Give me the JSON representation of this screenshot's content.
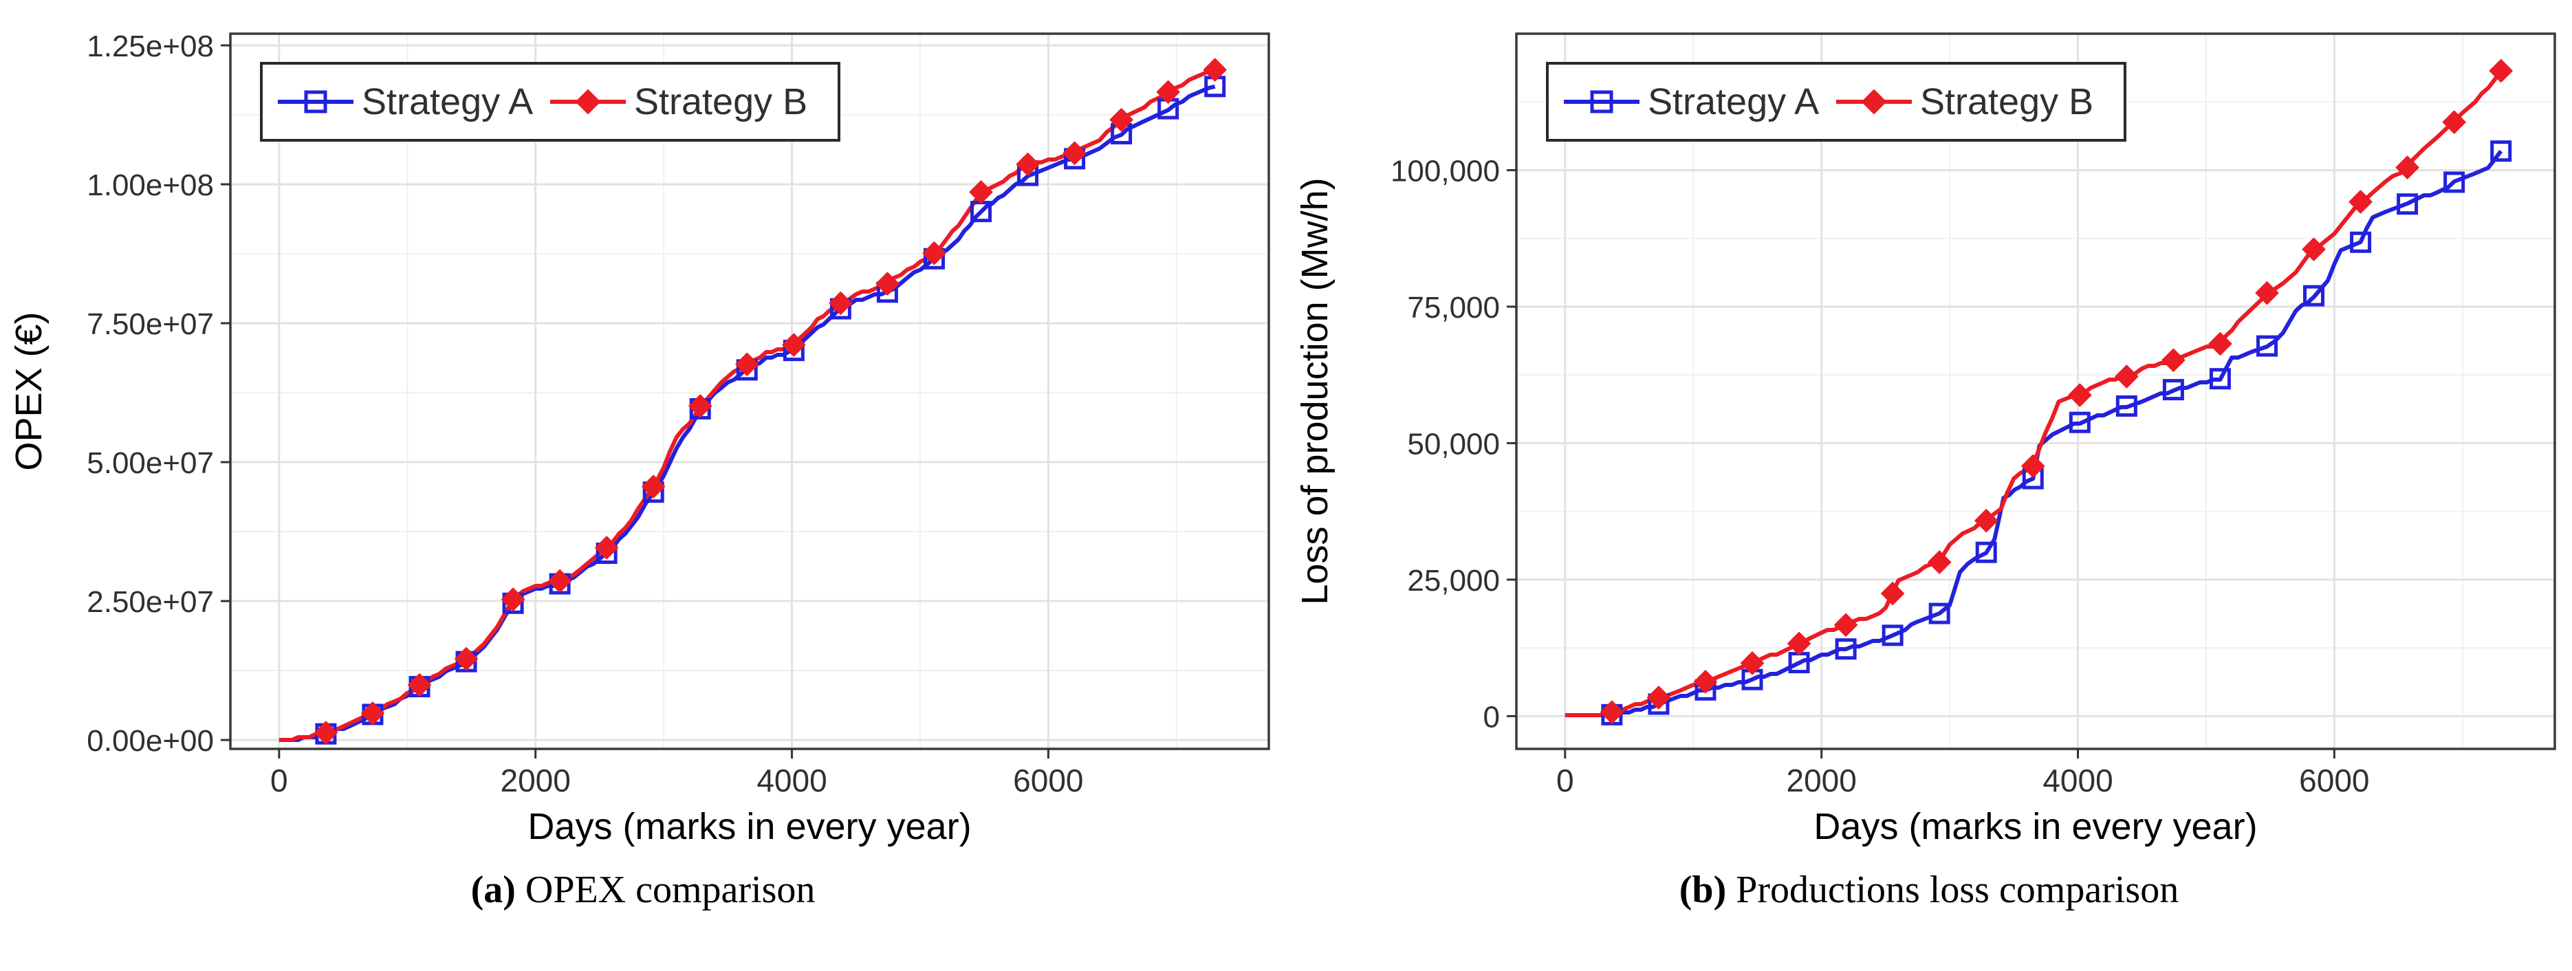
{
  "page": {
    "background": "#ffffff",
    "grid_major_color": "#e2e2e2",
    "grid_minor_color": "#f0f0f0",
    "panel_border_color": "#3a3a3a",
    "tick_color": "#333333",
    "text_color": "#303030"
  },
  "legend": {
    "items": [
      {
        "label": "Strategy A",
        "color": "#2222dd",
        "marker": "open-square"
      },
      {
        "label": "Strategy B",
        "color": "#ec1c24",
        "marker": "filled-diamond"
      }
    ],
    "position": "top-left-inside",
    "orientation": "horizontal"
  },
  "chart_data": [
    {
      "type": "line",
      "title": "",
      "caption": {
        "label": "(a)",
        "text": "OPEX comparison"
      },
      "xlabel": "Days (marks in every year)",
      "ylabel": "OPEX (€)",
      "xlim": [
        -380,
        7720
      ],
      "ylim": [
        -1600000,
        127100000
      ],
      "grid": true,
      "legend_position": "top-left-inside",
      "marker_interval_days": 365,
      "x_ticks": [
        {
          "v": 0,
          "label": "0"
        },
        {
          "v": 2000,
          "label": "2000"
        },
        {
          "v": 4000,
          "label": "4000"
        },
        {
          "v": 6000,
          "label": "6000"
        }
      ],
      "x_minor": [
        1000,
        3000,
        5000,
        7000
      ],
      "y_ticks": [
        {
          "v": 0,
          "label": "0.00e+00"
        },
        {
          "v": 25000000,
          "label": "2.50e+07"
        },
        {
          "v": 50000000,
          "label": "5.00e+07"
        },
        {
          "v": 75000000,
          "label": "7.50e+07"
        },
        {
          "v": 100000000,
          "label": "1.00e+08"
        },
        {
          "v": 125000000,
          "label": "1.25e+08"
        }
      ],
      "y_minor": [
        12500000,
        37500000,
        62500000,
        87500000,
        112500000
      ],
      "series": [
        {
          "name": "Strategy A",
          "color": "#2222dd",
          "marker": "open-square",
          "points": [
            [
              0,
              0
            ],
            [
              150,
              200000
            ],
            [
              365,
              1100000
            ],
            [
              550,
              2600000
            ],
            [
              730,
              4600000
            ],
            [
              900,
              6600000
            ],
            [
              1095,
              9600000
            ],
            [
              1250,
              11600000
            ],
            [
              1460,
              14100000
            ],
            [
              1600,
              16600000
            ],
            [
              1700,
              19600000
            ],
            [
              1800,
              23600000
            ],
            [
              1825,
              24600000
            ],
            [
              1900,
              26100000
            ],
            [
              2000,
              27100000
            ],
            [
              2190,
              28100000
            ],
            [
              2350,
              30100000
            ],
            [
              2555,
              33600000
            ],
            [
              2700,
              37100000
            ],
            [
              2800,
              40100000
            ],
            [
              2920,
              44600000
            ],
            [
              3000,
              47600000
            ],
            [
              3100,
              52600000
            ],
            [
              3200,
              56100000
            ],
            [
              3285,
              59600000
            ],
            [
              3450,
              63600000
            ],
            [
              3650,
              66600000
            ],
            [
              3800,
              68600000
            ],
            [
              4015,
              70100000
            ],
            [
              4200,
              74100000
            ],
            [
              4380,
              77600000
            ],
            [
              4500,
              79100000
            ],
            [
              4745,
              80600000
            ],
            [
              4900,
              83100000
            ],
            [
              5110,
              86600000
            ],
            [
              5300,
              90100000
            ],
            [
              5475,
              95100000
            ],
            [
              5650,
              98100000
            ],
            [
              5840,
              101600000
            ],
            [
              6000,
              103100000
            ],
            [
              6205,
              104600000
            ],
            [
              6400,
              106600000
            ],
            [
              6570,
              109100000
            ],
            [
              6750,
              111600000
            ],
            [
              6935,
              113600000
            ],
            [
              7100,
              115600000
            ],
            [
              7300,
              117600000
            ]
          ]
        },
        {
          "name": "Strategy B",
          "color": "#ec1c24",
          "marker": "filled-diamond",
          "points": [
            [
              0,
              0
            ],
            [
              150,
              300000
            ],
            [
              365,
              1300000
            ],
            [
              550,
              2800000
            ],
            [
              730,
              4800000
            ],
            [
              900,
              6900000
            ],
            [
              1095,
              9900000
            ],
            [
              1250,
              12100000
            ],
            [
              1460,
              14600000
            ],
            [
              1600,
              17100000
            ],
            [
              1700,
              20100000
            ],
            [
              1800,
              24300000
            ],
            [
              1825,
              25300000
            ],
            [
              1900,
              26600000
            ],
            [
              2000,
              27600000
            ],
            [
              2190,
              28600000
            ],
            [
              2350,
              30600000
            ],
            [
              2555,
              34600000
            ],
            [
              2700,
              38100000
            ],
            [
              2800,
              41600000
            ],
            [
              2920,
              45600000
            ],
            [
              3000,
              49100000
            ],
            [
              3100,
              54600000
            ],
            [
              3200,
              57100000
            ],
            [
              3285,
              60100000
            ],
            [
              3450,
              64600000
            ],
            [
              3650,
              67600000
            ],
            [
              3800,
              69600000
            ],
            [
              4015,
              71100000
            ],
            [
              4200,
              75600000
            ],
            [
              4380,
              78600000
            ],
            [
              4500,
              80100000
            ],
            [
              4745,
              82100000
            ],
            [
              4900,
              84600000
            ],
            [
              5110,
              87600000
            ],
            [
              5300,
              92600000
            ],
            [
              5475,
              98600000
            ],
            [
              5650,
              100600000
            ],
            [
              5840,
              103600000
            ],
            [
              6000,
              104300000
            ],
            [
              6205,
              105600000
            ],
            [
              6400,
              108100000
            ],
            [
              6570,
              111600000
            ],
            [
              6750,
              114100000
            ],
            [
              6935,
              116600000
            ],
            [
              7100,
              118600000
            ],
            [
              7300,
              120600000
            ]
          ]
        }
      ]
    },
    {
      "type": "line",
      "title": "",
      "caption": {
        "label": "(b)",
        "text": "Productions loss comparison"
      },
      "xlabel": "Days (marks in every year)",
      "ylabel": "Loss of production (Mw/h)",
      "xlim": [
        -380,
        7720
      ],
      "ylim": [
        -6000,
        125000
      ],
      "grid": true,
      "legend_position": "top-left-inside",
      "marker_interval_days": 365,
      "x_ticks": [
        {
          "v": 0,
          "label": "0"
        },
        {
          "v": 2000,
          "label": "2000"
        },
        {
          "v": 4000,
          "label": "4000"
        },
        {
          "v": 6000,
          "label": "6000"
        }
      ],
      "x_minor": [
        1000,
        3000,
        5000,
        7000
      ],
      "y_ticks": [
        {
          "v": 0,
          "label": "0"
        },
        {
          "v": 25000,
          "label": "25,000"
        },
        {
          "v": 50000,
          "label": "50,000"
        },
        {
          "v": 75000,
          "label": "75,000"
        },
        {
          "v": 100000,
          "label": "100,000"
        }
      ],
      "y_minor": [
        12500,
        37500,
        62500,
        87500,
        112500
      ],
      "series": [
        {
          "name": "Strategy A",
          "color": "#2222dd",
          "marker": "open-square",
          "points": [
            [
              0,
              0
            ],
            [
              300,
              0
            ],
            [
              500,
              800
            ],
            [
              730,
              2200
            ],
            [
              900,
              3600
            ],
            [
              1095,
              4800
            ],
            [
              1300,
              5700
            ],
            [
              1460,
              6700
            ],
            [
              1650,
              7900
            ],
            [
              1825,
              9800
            ],
            [
              2000,
              11200
            ],
            [
              2190,
              12300
            ],
            [
              2400,
              13600
            ],
            [
              2555,
              14800
            ],
            [
              2750,
              17200
            ],
            [
              2920,
              18800
            ],
            [
              3000,
              20500
            ],
            [
              3080,
              26500
            ],
            [
              3200,
              29000
            ],
            [
              3285,
              30000
            ],
            [
              3350,
              32500
            ],
            [
              3420,
              40000
            ],
            [
              3550,
              42000
            ],
            [
              3650,
              43500
            ],
            [
              3700,
              49500
            ],
            [
              3800,
              51500
            ],
            [
              4015,
              53800
            ],
            [
              4200,
              55200
            ],
            [
              4380,
              56800
            ],
            [
              4500,
              57600
            ],
            [
              4745,
              59800
            ],
            [
              4900,
              60600
            ],
            [
              5110,
              61800
            ],
            [
              5200,
              65500
            ],
            [
              5350,
              66500
            ],
            [
              5475,
              67800
            ],
            [
              5600,
              70000
            ],
            [
              5700,
              74000
            ],
            [
              5840,
              77000
            ],
            [
              5950,
              80000
            ],
            [
              6050,
              85500
            ],
            [
              6205,
              86800
            ],
            [
              6300,
              91500
            ],
            [
              6400,
              92500
            ],
            [
              6570,
              93800
            ],
            [
              6700,
              95200
            ],
            [
              6800,
              95800
            ],
            [
              6935,
              97800
            ],
            [
              7100,
              99200
            ],
            [
              7200,
              100500
            ],
            [
              7300,
              103500
            ]
          ]
        },
        {
          "name": "Strategy B",
          "color": "#ec1c24",
          "marker": "filled-diamond",
          "points": [
            [
              0,
              0
            ],
            [
              300,
              300
            ],
            [
              500,
              1600
            ],
            [
              730,
              3400
            ],
            [
              900,
              4900
            ],
            [
              1095,
              6300
            ],
            [
              1300,
              8300
            ],
            [
              1460,
              9700
            ],
            [
              1650,
              11500
            ],
            [
              1825,
              13300
            ],
            [
              2000,
              15300
            ],
            [
              2190,
              16700
            ],
            [
              2400,
              18500
            ],
            [
              2500,
              19600
            ],
            [
              2600,
              24800
            ],
            [
              2750,
              26600
            ],
            [
              2920,
              28200
            ],
            [
              3000,
              31500
            ],
            [
              3100,
              33500
            ],
            [
              3285,
              35800
            ],
            [
              3400,
              38200
            ],
            [
              3500,
              43500
            ],
            [
              3650,
              45800
            ],
            [
              3750,
              52000
            ],
            [
              3850,
              57500
            ],
            [
              4015,
              58800
            ],
            [
              4100,
              60000
            ],
            [
              4200,
              61200
            ],
            [
              4380,
              62200
            ],
            [
              4500,
              63600
            ],
            [
              4745,
              65200
            ],
            [
              4900,
              66800
            ],
            [
              5110,
              68200
            ],
            [
              5250,
              72000
            ],
            [
              5475,
              77500
            ],
            [
              5600,
              79200
            ],
            [
              5700,
              81200
            ],
            [
              5840,
              85500
            ],
            [
              6000,
              88200
            ],
            [
              6205,
              94200
            ],
            [
              6300,
              95800
            ],
            [
              6400,
              97800
            ],
            [
              6570,
              100500
            ],
            [
              6700,
              104200
            ],
            [
              6800,
              106200
            ],
            [
              6935,
              108800
            ],
            [
              7000,
              110500
            ],
            [
              7100,
              112500
            ],
            [
              7200,
              115200
            ],
            [
              7300,
              118200
            ]
          ]
        }
      ]
    }
  ]
}
